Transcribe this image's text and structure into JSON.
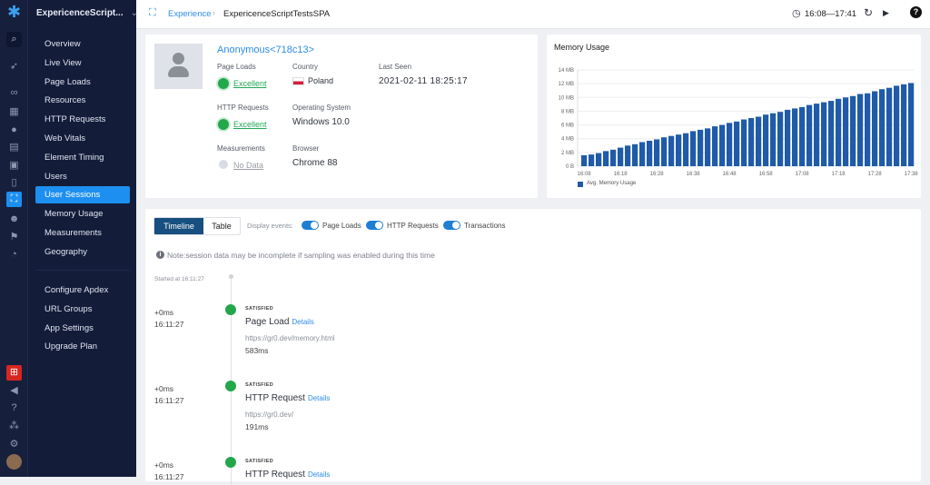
{
  "app": {
    "name": "ExpericenceScript...",
    "accent": "#1d8ff0"
  },
  "nav": {
    "items": [
      "Overview",
      "Live View",
      "Page Loads",
      "Resources",
      "HTTP Requests",
      "Web Vitals",
      "Element Timing",
      "Users",
      "User Sessions",
      "Memory Usage",
      "Measurements",
      "Geography"
    ],
    "active": "User Sessions",
    "settings": [
      "Configure Apdex",
      "URL Groups",
      "App Settings",
      "Upgrade Plan"
    ]
  },
  "breadcrumb": {
    "section": "Experience",
    "page": "ExpericenceScriptTestsSPA"
  },
  "header": {
    "time_range": "16:08—17:41"
  },
  "user": {
    "name": "Anonymous<718c13>",
    "page_loads_label": "Page Loads",
    "page_loads": "Excellent",
    "http_label": "HTTP Requests",
    "http": "Excellent",
    "measurements_label": "Measurements",
    "measurements": "No Data",
    "country_label": "Country",
    "country": "Poland",
    "os_label": "Operating System",
    "os": "Windows 10.0",
    "browser_label": "Browser",
    "browser": "Chrome 88",
    "last_seen_label": "Last Seen",
    "last_seen": "2021-02-11 18:25:17"
  },
  "chart_data": {
    "type": "bar",
    "title": "Memory Usage",
    "legend": [
      "Avg. Memory Usage"
    ],
    "legend_placement": "bottom-left",
    "color": "#1f5ba8",
    "grid": true,
    "y_ticks": [
      "0 B",
      "2 MB",
      "4 MB",
      "6 MB",
      "8 MB",
      "10 MB",
      "12 MB",
      "14 MB"
    ],
    "ylim": [
      0,
      14
    ],
    "yunit": "MB",
    "x_ticks": [
      "16:08",
      "16:18",
      "16:28",
      "16:38",
      "16:48",
      "16:58",
      "17:08",
      "17:18",
      "17:28",
      "17:38"
    ],
    "categories": [
      "16:08",
      "16:10",
      "16:12",
      "16:14",
      "16:16",
      "16:18",
      "16:20",
      "16:22",
      "16:24",
      "16:26",
      "16:28",
      "16:30",
      "16:32",
      "16:34",
      "16:36",
      "16:38",
      "16:40",
      "16:42",
      "16:44",
      "16:46",
      "16:48",
      "16:50",
      "16:52",
      "16:54",
      "16:56",
      "16:58",
      "17:00",
      "17:02",
      "17:04",
      "17:06",
      "17:08",
      "17:10",
      "17:12",
      "17:14",
      "17:16",
      "17:18",
      "17:20",
      "17:22",
      "17:24",
      "17:26",
      "17:28",
      "17:30",
      "17:32",
      "17:34",
      "17:36",
      "17:38"
    ],
    "values": [
      1.6,
      1.7,
      1.9,
      2.2,
      2.4,
      2.7,
      3.0,
      3.2,
      3.5,
      3.7,
      3.9,
      4.2,
      4.4,
      4.6,
      4.8,
      5.1,
      5.3,
      5.5,
      5.8,
      6.0,
      6.3,
      6.5,
      6.8,
      7.0,
      7.2,
      7.5,
      7.7,
      7.9,
      8.2,
      8.4,
      8.6,
      8.9,
      9.1,
      9.3,
      9.5,
      9.8,
      10.0,
      10.2,
      10.5,
      10.6,
      10.9,
      11.2,
      11.4,
      11.7,
      11.9,
      12.1
    ]
  },
  "timeline": {
    "tabs": [
      "Timeline",
      "Table"
    ],
    "display_label": "Display events:",
    "toggles": [
      "Page Loads",
      "HTTP Requests",
      "Transactions"
    ],
    "note": "Note:session data may be incomplete if sampling was enabled during this time",
    "started": "Started at 16:11:27",
    "events": [
      {
        "offset": "+0ms",
        "time": "16:11:27",
        "status": "SATISFIED",
        "type": "Page Load",
        "details": "Details",
        "url": "https://gr0.dev/memory.html",
        "duration": "583ms"
      },
      {
        "offset": "+0ms",
        "time": "16:11:27",
        "status": "SATISFIED",
        "type": "HTTP Request",
        "details": "Details",
        "url": "https://gr0.dev/",
        "duration": "191ms"
      },
      {
        "offset": "+0ms",
        "time": "16:11:27",
        "status": "SATISFIED",
        "type": "HTTP Request",
        "details": "Details"
      }
    ]
  }
}
